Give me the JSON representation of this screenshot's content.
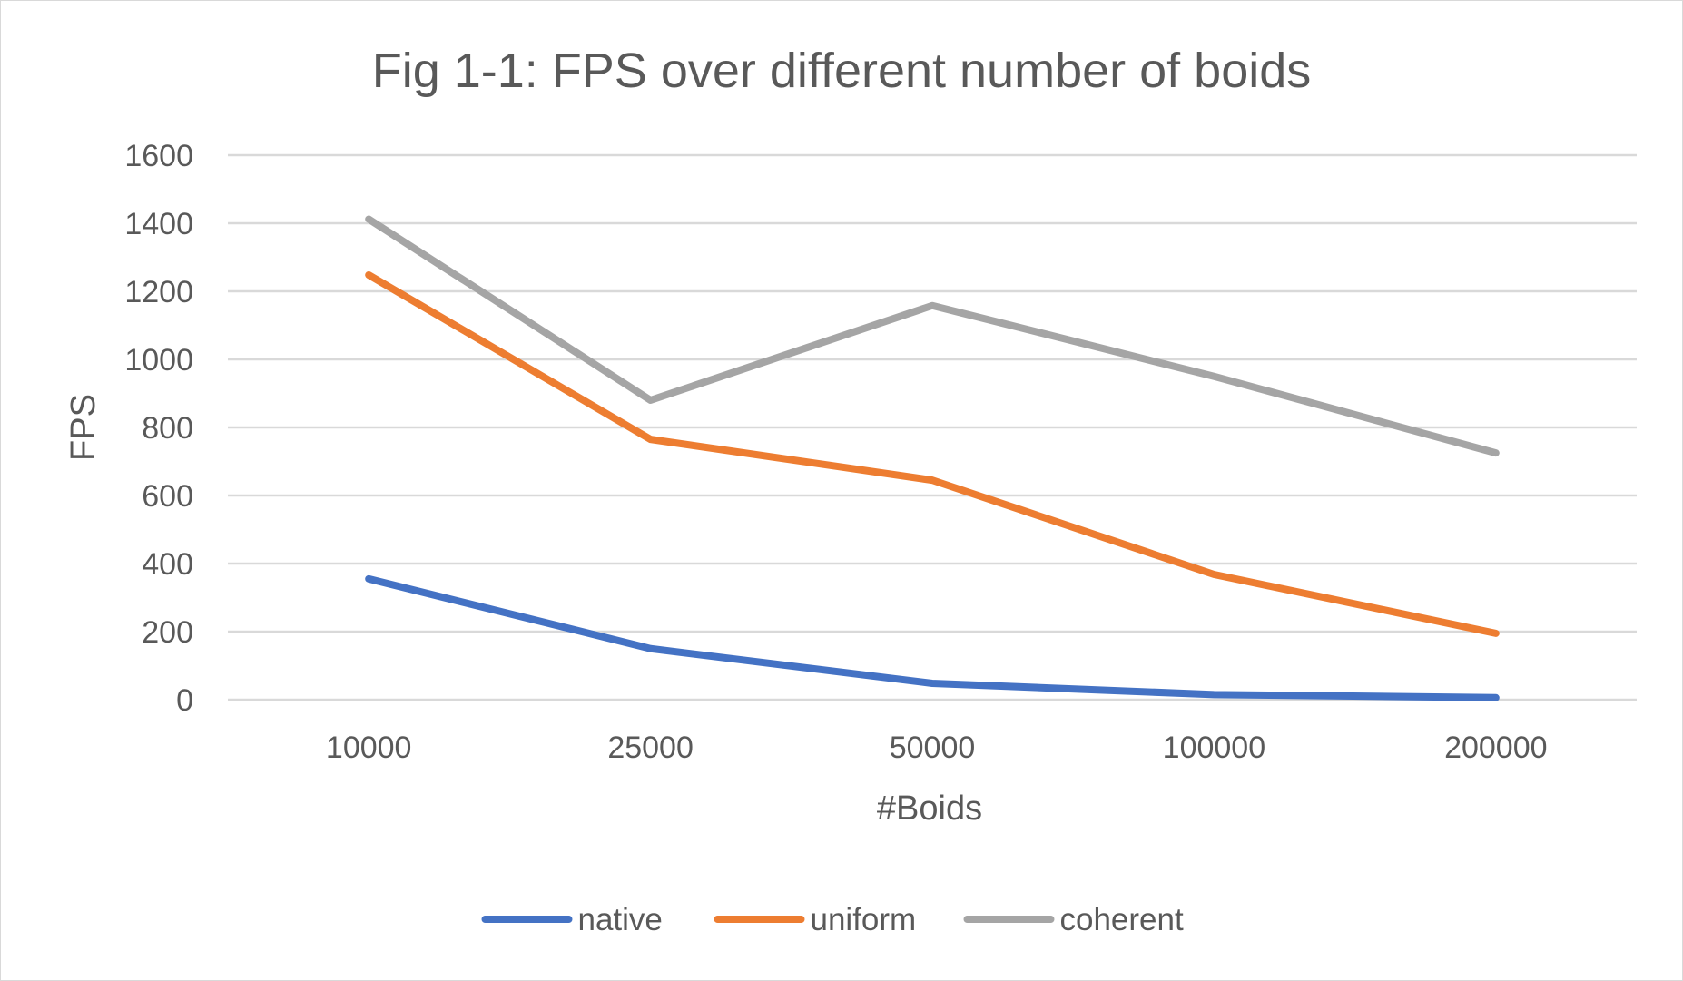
{
  "chart_data": {
    "type": "line",
    "title": "Fig 1-1: FPS over different number of boids",
    "xlabel": "#Boids",
    "ylabel": "FPS",
    "categories": [
      "10000",
      "25000",
      "50000",
      "100000",
      "200000"
    ],
    "ylim": [
      0,
      1600
    ],
    "yticks": [
      0,
      200,
      400,
      600,
      800,
      1000,
      1200,
      1400,
      1600
    ],
    "grid": true,
    "legend_position": "bottom",
    "series": [
      {
        "name": "native",
        "color": "#4472C4",
        "values": [
          355,
          150,
          48,
          15,
          6
        ]
      },
      {
        "name": "uniform",
        "color": "#ED7D31",
        "values": [
          1248,
          765,
          645,
          368,
          195
        ]
      },
      {
        "name": "coherent",
        "color": "#A5A5A5",
        "values": [
          1412,
          880,
          1158,
          950,
          725
        ]
      }
    ]
  }
}
